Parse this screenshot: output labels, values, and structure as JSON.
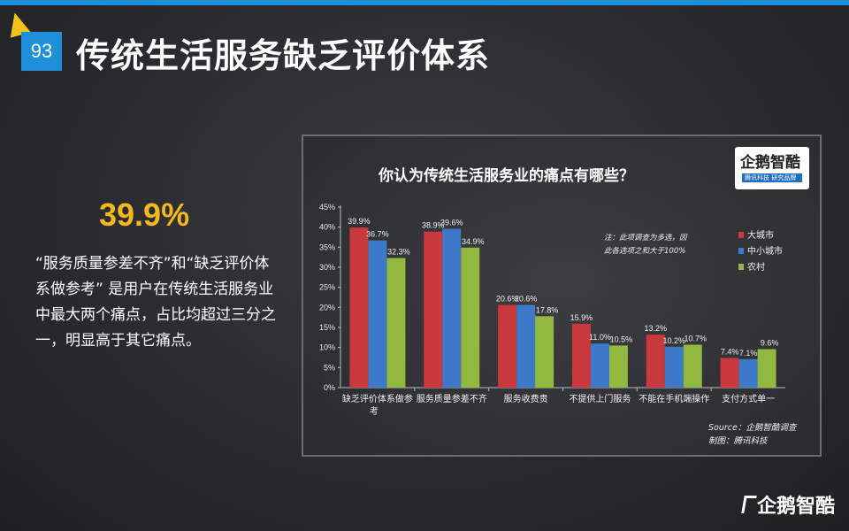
{
  "page": {
    "number": "93",
    "title": "传统生活服务缺乏评价体系"
  },
  "highlight": {
    "stat": "39.9%",
    "description": "“服务质量参差不齐”和“缺乏评价体系做参考” 是用户在传统生活服务业中最大两个痛点，占比均超过三分之一，明显高于其它痛点。"
  },
  "logo": {
    "name": "企鹅智酷",
    "sub": "腾讯科技 研究品牌"
  },
  "footer_logo": "企鹅智酷",
  "colors": {
    "accent_blue": "#1f8fd8",
    "stat_gold": "#f2b81d",
    "series_big_city": "#c8383d",
    "series_small_city": "#3e78c8",
    "series_rural": "#93b840"
  },
  "chart_data": {
    "type": "bar",
    "title": "你认为传统生活服务业的痛点有哪些？",
    "categories": [
      "缺乏评价体系做参考",
      "服务质量参差不齐",
      "服务收费贵",
      "不提供上门服务",
      "不能在手机端操作",
      "支付方式单一"
    ],
    "series": [
      {
        "name": "大城市",
        "values": [
          39.9,
          38.9,
          20.6,
          15.9,
          13.2,
          7.4
        ],
        "labels": [
          "39.9%",
          "38.9%",
          "20.6%",
          "15.9%",
          "13.2%",
          "7.4%"
        ]
      },
      {
        "name": "中小城市",
        "values": [
          36.7,
          39.6,
          20.6,
          11.0,
          10.2,
          7.1
        ],
        "labels": [
          "36.7%",
          "39.6%",
          "20.6%",
          "11.0%",
          "10.2%",
          "7.1%"
        ]
      },
      {
        "name": "农村",
        "values": [
          32.3,
          34.9,
          17.8,
          10.5,
          10.7,
          9.6
        ],
        "labels": [
          "32.3%",
          "34.9%",
          "17.8%",
          "10.5%",
          "10.7%",
          "9.6%"
        ]
      }
    ],
    "ylim": [
      0,
      45
    ],
    "yticks": [
      "0%",
      "5%",
      "10%",
      "15%",
      "20%",
      "25%",
      "30%",
      "35%",
      "40%",
      "45%"
    ],
    "legend_position": "right",
    "note_lines": [
      "注：此项调查为多选，因",
      "此各选项之和大于100%"
    ],
    "source_lines": [
      "Source：企鹅智酷调查",
      "制图：腾讯科技"
    ]
  }
}
